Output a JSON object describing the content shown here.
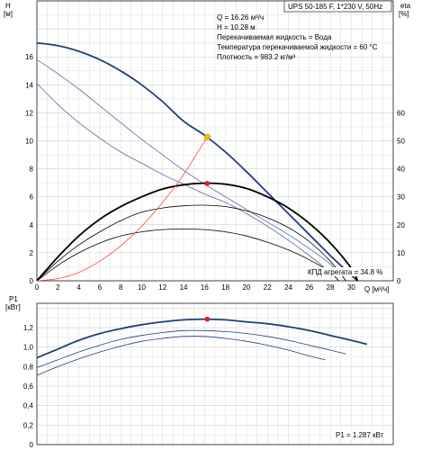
{
  "chart_data": [
    {
      "type": "line",
      "model_label": "UPS 50-185 F, 1*230 V, 50Hz",
      "info_lines": [
        "Q = 16.26 м³/ч",
        "H = 10.28 м",
        "Перекачиваемая жидкость = Вода",
        "Температура перекачиваемой жидкости = 60 °C",
        "Плотность = 983.2 кг/м³"
      ],
      "y_label": [
        "H",
        "[м]"
      ],
      "y2_label": [
        "eta",
        "[%]"
      ],
      "x_label": "Q [м³/ч]",
      "x_ticks": [
        0,
        2,
        4,
        6,
        8,
        10,
        12,
        14,
        16,
        18,
        20,
        22,
        24,
        26,
        28,
        30
      ],
      "y_ticks": [
        0,
        2,
        4,
        6,
        8,
        10,
        12,
        14,
        16
      ],
      "y2_ticks": [
        0,
        10,
        20,
        30,
        40,
        50,
        60
      ],
      "xlim": [
        0,
        34
      ],
      "ylim": [
        0,
        20
      ],
      "y2lim": [
        0,
        100
      ],
      "grid": true,
      "eta_label": "КПД агрегата = 34.8 %",
      "duty_point": {
        "q": 16.26,
        "h": 10.28,
        "eta": 34.8
      },
      "series": [
        {
          "axis": "h",
          "role": "head-max",
          "color": "#1f3f7a",
          "width": 1.8,
          "x": [
            0,
            2,
            4,
            6,
            8,
            10,
            12,
            14,
            16,
            18,
            20,
            22,
            24,
            26,
            28,
            30,
            30.6
          ],
          "y": [
            17.0,
            16.8,
            16.4,
            15.8,
            15.0,
            14.0,
            12.8,
            11.4,
            10.4,
            9.2,
            7.8,
            6.3,
            4.8,
            3.3,
            1.8,
            0.4,
            0
          ]
        },
        {
          "axis": "h",
          "role": "head-2",
          "color": "#5a6aa0",
          "width": 0.8,
          "x": [
            0,
            2,
            4,
            6,
            8,
            10,
            12,
            14,
            16,
            18,
            20,
            22,
            24,
            26,
            28,
            29.5
          ],
          "y": [
            15.8,
            14.8,
            13.7,
            12.5,
            11.3,
            10.1,
            9.0,
            7.9,
            6.9,
            6.0,
            5.1,
            4.2,
            3.3,
            2.3,
            1.2,
            0
          ]
        },
        {
          "axis": "h",
          "role": "head-1",
          "color": "#5a6aa0",
          "width": 0.8,
          "x": [
            0,
            2,
            4,
            6,
            8,
            10,
            12,
            14,
            16,
            18,
            20,
            22,
            24,
            26,
            28,
            28.8
          ],
          "y": [
            14.1,
            12.6,
            11.3,
            10.2,
            9.2,
            8.4,
            7.6,
            6.9,
            6.2,
            5.6,
            4.8,
            3.9,
            2.9,
            1.8,
            0.6,
            0
          ]
        },
        {
          "axis": "eta",
          "role": "eta-max",
          "color": "#000000",
          "width": 1.8,
          "x": [
            0,
            2,
            4,
            6,
            8,
            10,
            12,
            14,
            16,
            18,
            20,
            22,
            24,
            26,
            28,
            30,
            30.6
          ],
          "y": [
            0,
            8.5,
            16.0,
            22.0,
            26.5,
            30.0,
            32.8,
            34.3,
            34.9,
            34.5,
            33.0,
            30.0,
            26.0,
            20.5,
            13.5,
            4.5,
            0
          ]
        },
        {
          "axis": "eta",
          "role": "eta-2",
          "color": "#000000",
          "width": 0.8,
          "x": [
            0,
            2,
            4,
            6,
            8,
            10,
            12,
            14,
            16,
            18,
            20,
            22,
            24,
            26,
            28,
            29.5
          ],
          "y": [
            0,
            7.0,
            12.8,
            17.5,
            21.5,
            24.5,
            26.0,
            26.8,
            27.0,
            26.5,
            25.0,
            22.5,
            19.0,
            14.0,
            7.0,
            0
          ]
        },
        {
          "axis": "eta",
          "role": "eta-1",
          "color": "#000000",
          "width": 0.8,
          "x": [
            0,
            2,
            4,
            6,
            8,
            10,
            12,
            14,
            16,
            18,
            20,
            22,
            24,
            26,
            28,
            28.8
          ],
          "y": [
            0,
            5.5,
            10.0,
            13.5,
            16.0,
            17.5,
            18.3,
            18.5,
            18.3,
            17.5,
            16.0,
            13.8,
            11.0,
            7.5,
            3.0,
            0
          ]
        },
        {
          "axis": "h",
          "role": "system-curve",
          "color": "#ff4444",
          "width": 0.8,
          "x": [
            0,
            2,
            4,
            6,
            8,
            10,
            12,
            14,
            16.26
          ],
          "y": [
            0,
            0.16,
            0.6,
            1.4,
            2.5,
            3.9,
            5.6,
            7.6,
            10.28
          ]
        }
      ]
    },
    {
      "type": "line",
      "y_label": [
        "P1",
        "[кВт]"
      ],
      "y_ticks": [
        "0",
        "0,2",
        "0,4",
        "0,6",
        "0,8",
        "1,0",
        "1,2"
      ],
      "ylim": [
        0,
        1.45
      ],
      "xlim": [
        0,
        34
      ],
      "grid": true,
      "power_label": "P1 = 1.287 кВт",
      "duty_point": {
        "q": 16.26,
        "p": 1.287
      },
      "series": [
        {
          "role": "power-max",
          "color": "#1f3f7a",
          "width": 1.8,
          "x": [
            0,
            2,
            4,
            6,
            8,
            10,
            12,
            14,
            16,
            18,
            20,
            22,
            24,
            26,
            28,
            30,
            31.5
          ],
          "y": [
            0.89,
            0.98,
            1.07,
            1.14,
            1.19,
            1.23,
            1.26,
            1.28,
            1.287,
            1.28,
            1.26,
            1.24,
            1.21,
            1.17,
            1.12,
            1.07,
            1.03
          ]
        },
        {
          "role": "power-2",
          "color": "#1f3f7a",
          "width": 0.8,
          "x": [
            0,
            2,
            4,
            6,
            8,
            10,
            12,
            14,
            16,
            18,
            20,
            22,
            24,
            26,
            28,
            29.5
          ],
          "y": [
            0.79,
            0.87,
            0.95,
            1.02,
            1.08,
            1.12,
            1.15,
            1.17,
            1.17,
            1.16,
            1.14,
            1.11,
            1.07,
            1.02,
            0.97,
            0.93
          ]
        },
        {
          "role": "power-1",
          "color": "#1f3f7a",
          "width": 0.8,
          "x": [
            0,
            2,
            4,
            6,
            8,
            10,
            12,
            14,
            16,
            18,
            20,
            22,
            24,
            26,
            27.5
          ],
          "y": [
            0.71,
            0.8,
            0.88,
            0.95,
            1.01,
            1.06,
            1.09,
            1.11,
            1.11,
            1.09,
            1.06,
            1.02,
            0.97,
            0.91,
            0.87
          ]
        }
      ]
    }
  ]
}
